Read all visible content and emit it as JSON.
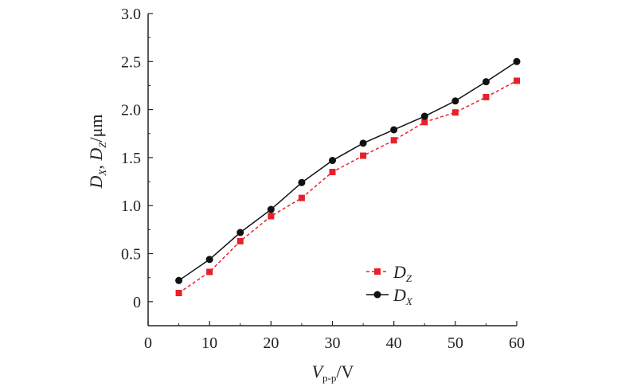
{
  "chart_data": {
    "type": "line",
    "x": [
      5,
      10,
      15,
      20,
      25,
      30,
      35,
      40,
      45,
      50,
      55,
      60
    ],
    "series": [
      {
        "key": "DZ",
        "name_main": "D",
        "name_sub": "Z",
        "values": [
          0.09,
          0.31,
          0.63,
          0.89,
          1.08,
          1.35,
          1.52,
          1.68,
          1.87,
          1.97,
          2.13,
          2.3
        ],
        "color": "#e8202a",
        "line_style": "dashed",
        "marker": "square"
      },
      {
        "key": "DX",
        "name_main": "D",
        "name_sub": "X",
        "values": [
          0.22,
          0.44,
          0.72,
          0.96,
          1.24,
          1.47,
          1.65,
          1.79,
          1.93,
          2.09,
          2.29,
          2.5
        ],
        "color": "#111111",
        "line_style": "solid",
        "marker": "circle"
      }
    ],
    "xlim": [
      0,
      60
    ],
    "ylim": [
      -0.25,
      3.0
    ],
    "x_ticks": [
      "0",
      "10",
      "20",
      "30",
      "40",
      "50",
      "60"
    ],
    "y_ticks": [
      "0",
      "0.5",
      "1.0",
      "1.5",
      "2.0",
      "2.5",
      "3.0"
    ],
    "xlabel": {
      "main": "V",
      "sub": "p-p",
      "unit": "/V"
    },
    "ylabel": {
      "d1": "D",
      "s1": "X",
      "sep": ", ",
      "d2": "D",
      "s2": "Z",
      "unit": "/μm"
    },
    "legend_position": "lower-right",
    "grid": false
  }
}
